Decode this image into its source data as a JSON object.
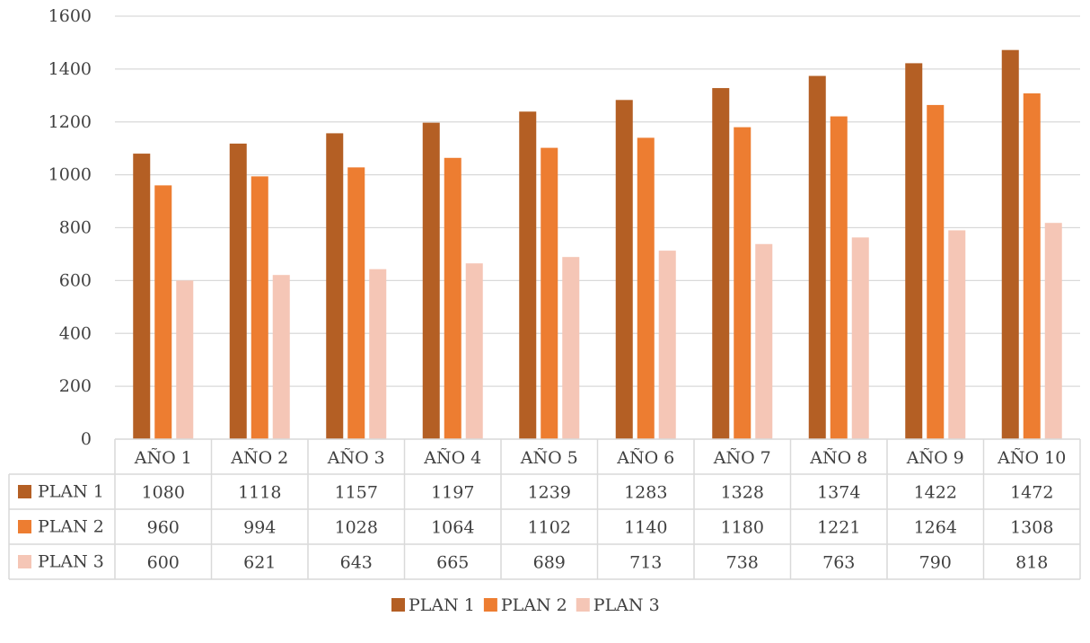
{
  "chart_data": {
    "type": "bar",
    "categories": [
      "AÑO 1",
      "AÑO 2",
      "AÑO 3",
      "AÑO 4",
      "AÑO 5",
      "AÑO 6",
      "AÑO 7",
      "AÑO 8",
      "AÑO 9",
      "AÑO 10"
    ],
    "series": [
      {
        "name": "PLAN 1",
        "color": "#b45f24",
        "values": [
          1080,
          1118,
          1157,
          1197,
          1239,
          1283,
          1328,
          1374,
          1422,
          1472
        ]
      },
      {
        "name": "PLAN 2",
        "color": "#ed7d31",
        "values": [
          960,
          994,
          1028,
          1064,
          1102,
          1140,
          1180,
          1221,
          1264,
          1308
        ]
      },
      {
        "name": "PLAN 3",
        "color": "#f5c6b6",
        "values": [
          600,
          621,
          643,
          665,
          689,
          713,
          738,
          763,
          790,
          818
        ]
      }
    ],
    "ylim": [
      0,
      1600
    ],
    "yticks": [
      0,
      200,
      400,
      600,
      800,
      1000,
      1200,
      1400,
      1600
    ],
    "grid": true,
    "data_table": true,
    "legend_position": "bottom"
  }
}
